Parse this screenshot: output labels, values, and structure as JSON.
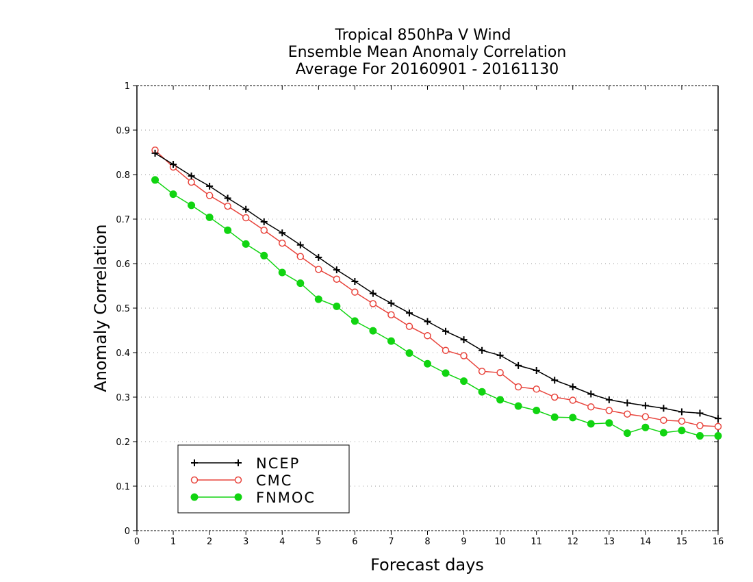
{
  "chart_data": {
    "type": "line",
    "title": [
      "Tropical 850hPa V Wind",
      "Ensemble Mean Anomaly Correlation",
      "Average For 20160901 - 20161130"
    ],
    "xlabel": "Forecast days",
    "ylabel": "Anomaly Correlation",
    "xlim": [
      0,
      16
    ],
    "ylim": [
      0,
      1
    ],
    "xticks": [
      "0",
      "1",
      "2",
      "3",
      "4",
      "5",
      "6",
      "7",
      "8",
      "9",
      "10",
      "11",
      "12",
      "13",
      "14",
      "15",
      "16"
    ],
    "yticks": [
      "0",
      "0.1",
      "0.2",
      "0.3",
      "0.4",
      "0.5",
      "0.6",
      "0.7",
      "0.8",
      "0.9",
      "1"
    ],
    "grid": true,
    "legend_position": "bottom-left",
    "x": [
      0.5,
      1,
      1.5,
      2,
      2.5,
      3,
      3.5,
      4,
      4.5,
      5,
      5.5,
      6,
      6.5,
      7,
      7.5,
      8,
      8.5,
      9,
      9.5,
      10,
      10.5,
      11,
      11.5,
      12,
      12.5,
      13,
      13.5,
      14,
      14.5,
      15,
      15.5,
      16
    ],
    "series": [
      {
        "name": "NCEP",
        "color": "#000000",
        "marker": "plus",
        "values": [
          0.848,
          0.823,
          0.797,
          0.774,
          0.747,
          0.722,
          0.694,
          0.669,
          0.642,
          0.614,
          0.586,
          0.56,
          0.533,
          0.511,
          0.489,
          0.47,
          0.448,
          0.429,
          0.405,
          0.394,
          0.371,
          0.36,
          0.338,
          0.323,
          0.307,
          0.294,
          0.287,
          0.281,
          0.275,
          0.267,
          0.264,
          0.252
        ]
      },
      {
        "name": "CMC",
        "color": "#e8443c",
        "marker": "open-circle",
        "values": [
          0.855,
          0.817,
          0.783,
          0.753,
          0.729,
          0.703,
          0.675,
          0.646,
          0.616,
          0.587,
          0.565,
          0.536,
          0.51,
          0.485,
          0.459,
          0.438,
          0.405,
          0.393,
          0.358,
          0.355,
          0.323,
          0.318,
          0.3,
          0.293,
          0.278,
          0.27,
          0.262,
          0.256,
          0.248,
          0.246,
          0.236,
          0.234
        ]
      },
      {
        "name": "FNMOC",
        "color": "#11d411",
        "marker": "filled-circle",
        "values": [
          0.788,
          0.756,
          0.731,
          0.704,
          0.675,
          0.644,
          0.618,
          0.58,
          0.556,
          0.52,
          0.504,
          0.471,
          0.449,
          0.426,
          0.399,
          0.375,
          0.354,
          0.336,
          0.312,
          0.294,
          0.28,
          0.27,
          0.255,
          0.254,
          0.24,
          0.242,
          0.219,
          0.232,
          0.22,
          0.225,
          0.213,
          0.213
        ]
      }
    ]
  }
}
